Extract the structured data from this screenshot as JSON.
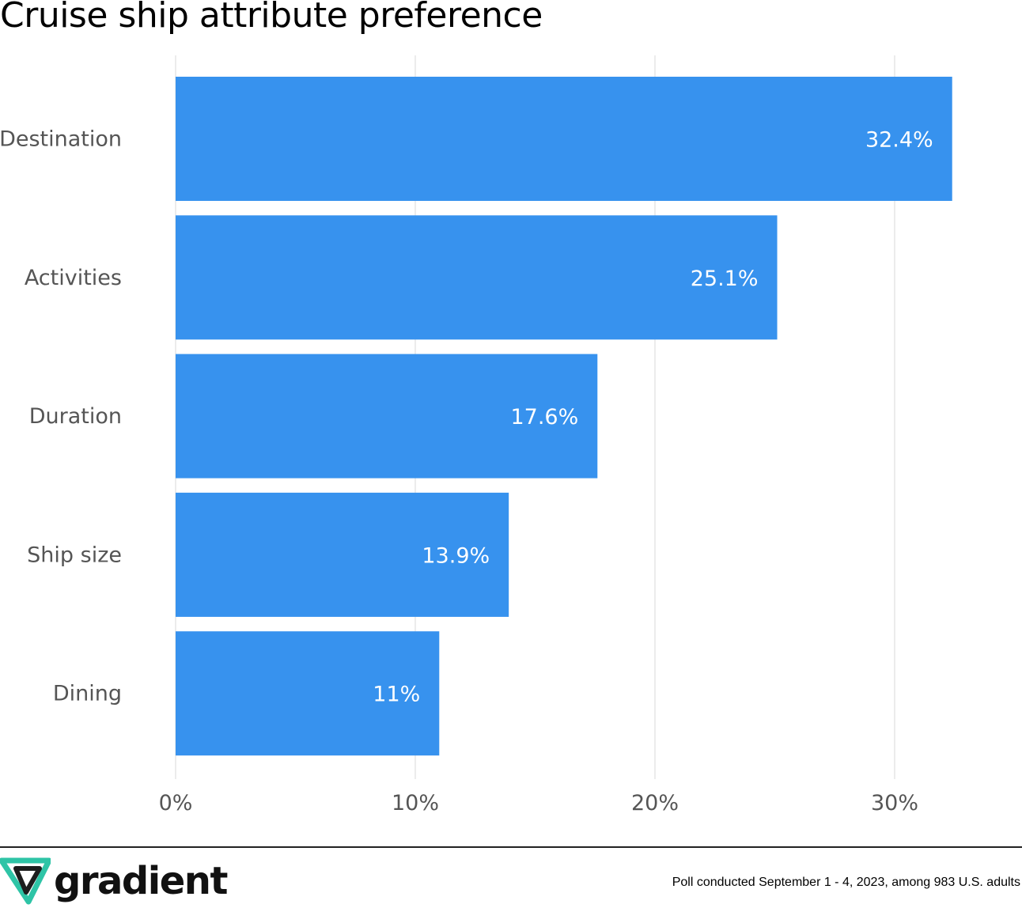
{
  "title": "Cruise ship attribute preference",
  "footer": {
    "logo_text": "gradient",
    "note": "Poll conducted September 1 - 4, 2023, among 983 U.S. adults"
  },
  "colors": {
    "bar": "#3792ee",
    "grid": "#e6e6e6",
    "tick_text": "#555555",
    "bar_label": "#ffffff",
    "logo_teal": "#2ec4a6",
    "logo_dark": "#1d1d1d"
  },
  "chart_data": {
    "type": "bar",
    "orientation": "horizontal",
    "categories": [
      "Destination",
      "Activities",
      "Duration",
      "Ship size",
      "Dining"
    ],
    "values": [
      32.4,
      25.1,
      17.6,
      13.9,
      11
    ],
    "data_labels": [
      "32.4%",
      "25.1%",
      "17.6%",
      "13.9%",
      "11%"
    ],
    "xlim": [
      0,
      33
    ],
    "x_ticks": [
      0,
      10,
      20,
      30
    ],
    "x_tick_labels": [
      "0%",
      "10%",
      "20%",
      "30%"
    ],
    "grid": true,
    "legend": "none"
  }
}
